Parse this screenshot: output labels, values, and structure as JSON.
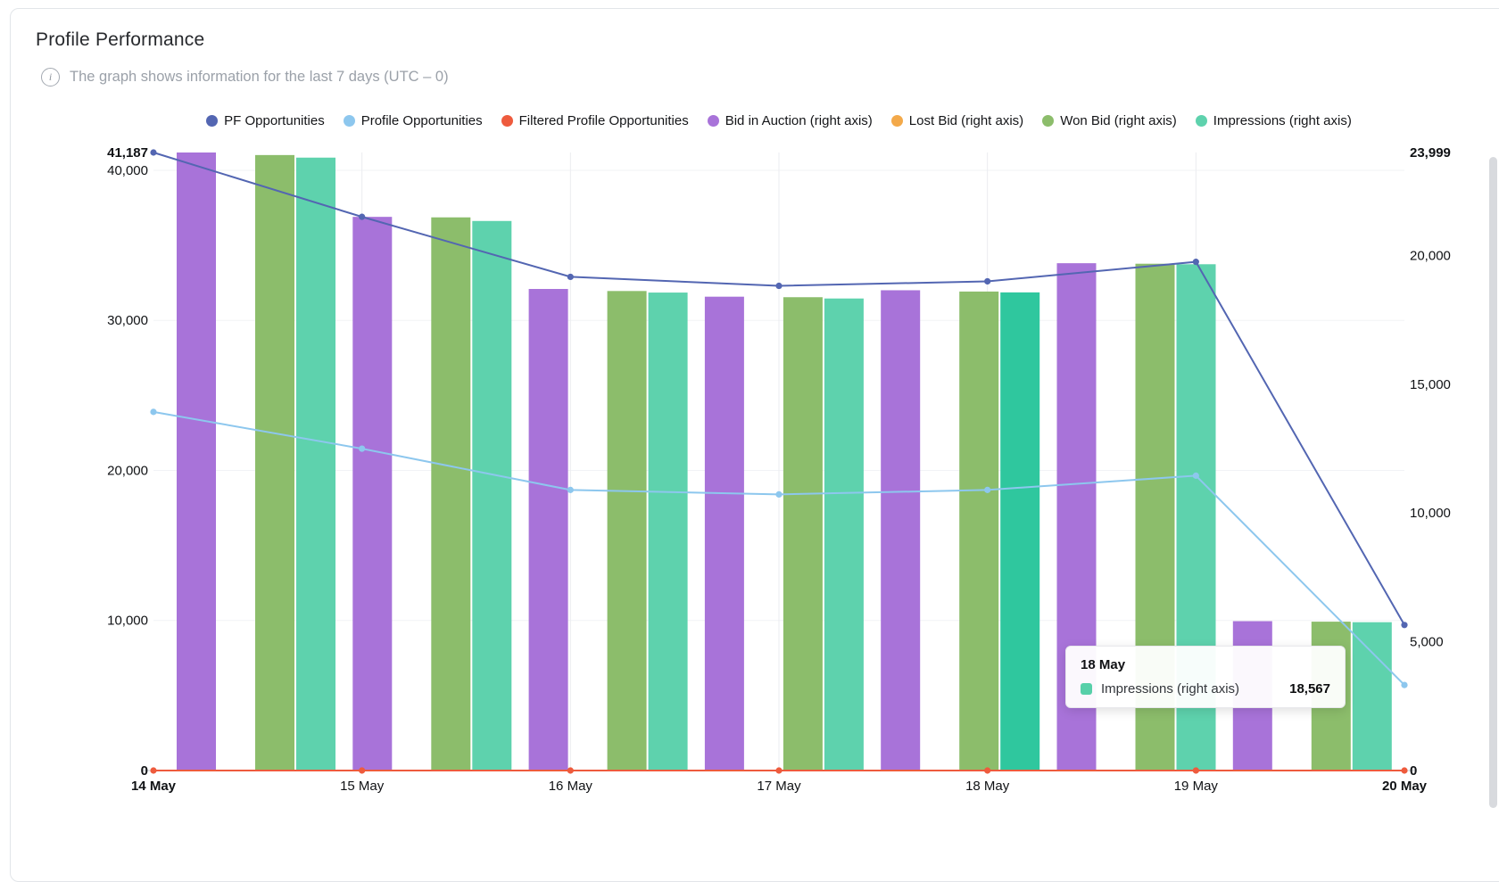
{
  "page": {
    "title": "Profile Performance",
    "subtitle": "The graph shows information for the last 7 days (UTC – 0)",
    "info_glyph": "i"
  },
  "tooltip": {
    "title": "18 May",
    "series": "Impressions (right axis)",
    "value": "18,567",
    "swatch_color": "#57d0a9"
  },
  "chart_data": {
    "type": "combo",
    "legend_position": "top",
    "grid": true,
    "categories": [
      "14 May",
      "15 May",
      "16 May",
      "17 May",
      "18 May",
      "19 May",
      "20 May"
    ],
    "series": [
      {
        "name": "PF Opportunities",
        "type": "line",
        "axis": "left",
        "color": "#5366b2",
        "values": [
          41187,
          36900,
          32900,
          32300,
          32600,
          33900,
          9700
        ]
      },
      {
        "name": "Profile Opportunities",
        "type": "line",
        "axis": "left",
        "color": "#8dc7ee",
        "values": [
          23900,
          21450,
          18700,
          18400,
          18700,
          19650,
          5700
        ]
      },
      {
        "name": "Filtered Profile Opportunities",
        "type": "line",
        "axis": "left",
        "color": "#ee5b3d",
        "values": [
          0,
          0,
          0,
          0,
          0,
          0,
          0
        ]
      },
      {
        "name": "Bid in Auction (right axis)",
        "type": "bar",
        "axis": "right",
        "color": "#a873d9",
        "values": [
          23999,
          21500,
          18700,
          18400,
          18650,
          19700,
          5800
        ]
      },
      {
        "name": "Lost Bid (right axis)",
        "type": "bar",
        "axis": "right",
        "color": "#f3a94a",
        "values": [
          0,
          0,
          0,
          0,
          0,
          0,
          0
        ]
      },
      {
        "name": "Won Bid (right axis)",
        "type": "bar",
        "axis": "right",
        "color": "#8cbd6b",
        "values": [
          23900,
          21480,
          18620,
          18380,
          18600,
          19680,
          5780
        ]
      },
      {
        "name": "Impressions (right axis)",
        "type": "bar",
        "axis": "right",
        "color": "#5ed2ad",
        "highlight_color": "#2fc79e",
        "highlight_index": 4,
        "values": [
          23800,
          21340,
          18560,
          18330,
          18567,
          19660,
          5760
        ]
      }
    ],
    "left_axis": {
      "max": 41187,
      "max_label": "41,187",
      "ticks": [
        {
          "value": 0,
          "label": "0",
          "bold": true
        },
        {
          "value": 10000,
          "label": "10,000",
          "bold": false
        },
        {
          "value": 20000,
          "label": "20,000",
          "bold": false
        },
        {
          "value": 30000,
          "label": "30,000",
          "bold": false
        },
        {
          "value": 40000,
          "label": "40,000",
          "bold": false
        }
      ]
    },
    "right_axis": {
      "max": 23999,
      "max_label": "23,999",
      "ticks": [
        {
          "value": 0,
          "label": "0",
          "bold": true
        },
        {
          "value": 5000,
          "label": "5,000",
          "bold": false
        },
        {
          "value": 10000,
          "label": "10,000",
          "bold": false
        },
        {
          "value": 15000,
          "label": "15,000",
          "bold": false
        },
        {
          "value": 20000,
          "label": "20,000",
          "bold": false
        }
      ]
    },
    "x_axis": {
      "bold_first_last": true
    }
  }
}
